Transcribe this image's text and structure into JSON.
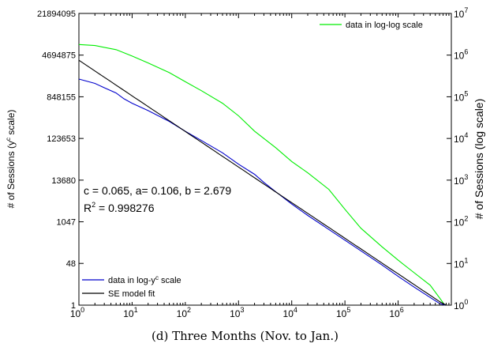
{
  "caption": "(d) Three Months (Nov. to Jan.)",
  "chart_data": {
    "type": "line",
    "title": "",
    "x_axis": {
      "scale": "log",
      "range": [
        1,
        10000000
      ],
      "ticks": [
        1,
        10,
        100,
        1000,
        10000,
        100000,
        1000000
      ],
      "tick_labels": [
        {
          "base": "10",
          "exp": "0"
        },
        {
          "base": "10",
          "exp": "1"
        },
        {
          "base": "10",
          "exp": "2"
        },
        {
          "base": "10",
          "exp": "3"
        },
        {
          "base": "10",
          "exp": "4"
        },
        {
          "base": "10",
          "exp": "5"
        },
        {
          "base": "10",
          "exp": "6"
        }
      ]
    },
    "y_left": {
      "scale": "power",
      "c": 0.065,
      "label_main": "# of Sessions (y",
      "label_sup": "c",
      "label_tail": " scale)",
      "ticks": [
        1,
        48,
        1047,
        13680,
        123653,
        848155,
        4694875,
        21894095
      ],
      "tick_labels": [
        "1",
        "48",
        "1047",
        "13680",
        "123653",
        "848155",
        "4694875",
        "21894095"
      ]
    },
    "y_right": {
      "scale": "log",
      "label": "# of Sessions (log scale)",
      "ticks": [
        1,
        10,
        100,
        1000,
        10000,
        100000,
        1000000,
        10000000
      ],
      "tick_labels": [
        {
          "base": "10",
          "exp": "0"
        },
        {
          "base": "10",
          "exp": "1"
        },
        {
          "base": "10",
          "exp": "2"
        },
        {
          "base": "10",
          "exp": "3"
        },
        {
          "base": "10",
          "exp": "4"
        },
        {
          "base": "10",
          "exp": "5"
        },
        {
          "base": "10",
          "exp": "6"
        },
        {
          "base": "10",
          "exp": "7"
        }
      ]
    },
    "series": [
      {
        "name": "data in log-log scale",
        "axis": "right",
        "color": "#00ee00",
        "x": [
          1,
          2,
          5,
          10,
          20,
          50,
          100,
          200,
          500,
          1000,
          2000,
          5000,
          10000,
          20000,
          50000,
          100000,
          200000,
          500000,
          1000000,
          2000000,
          4000000,
          6000000,
          7500000
        ],
        "y": [
          1800000,
          1700000,
          1350000,
          950000,
          650000,
          380000,
          230000,
          140000,
          70000,
          35000,
          15000,
          6000,
          2800,
          1500,
          600,
          200,
          70,
          25,
          12,
          6,
          3,
          1.5,
          1
        ]
      },
      {
        "name": "data in log-y",
        "name_sup": "c",
        "name_tail": " scale",
        "axis": "left",
        "color": "#0000cc",
        "x": [
          1,
          2,
          3,
          5,
          7,
          10,
          20,
          50,
          100,
          200,
          500,
          1000,
          2000,
          3000,
          5000,
          10000,
          20000,
          50000,
          100000,
          200000,
          500000,
          1000000,
          2000000,
          4000000,
          6000000,
          7500000
        ],
        "y": [
          1800000,
          1500000,
          1250000,
          1000000,
          780000,
          640000,
          460000,
          280000,
          175000,
          112000,
          60000,
          33000,
          19000,
          12000,
          7000,
          3300,
          1600,
          620,
          290,
          130,
          42,
          16,
          6,
          2.2,
          1.2,
          1
        ]
      },
      {
        "name": "SE model fit",
        "axis": "left",
        "color": "#000000",
        "model": {
          "c": 0.065,
          "a": 0.106,
          "b": 2.679
        }
      }
    ],
    "annotations": [
      {
        "text": "c = 0.065, a= 0.106, b = 2.679"
      },
      {
        "text_main": "R",
        "text_sup": "2",
        "text_tail": " = 0.998276"
      }
    ],
    "grid": false,
    "legends": [
      "top-right",
      "bottom-left"
    ]
  }
}
